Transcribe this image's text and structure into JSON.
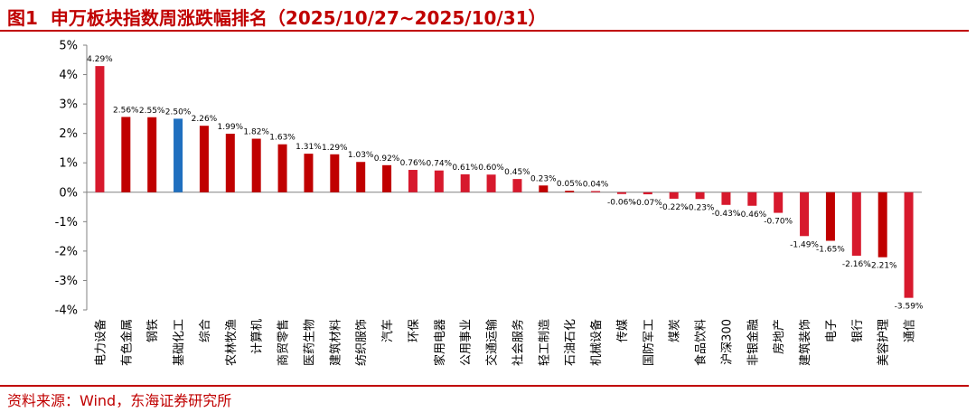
{
  "header": {
    "fig_label": "图1",
    "title": "申万板块指数周涨跌幅排名（2025/10/27~2025/10/31）"
  },
  "footer": {
    "source": "资料来源：Wind，东海证券研究所"
  },
  "colors": {
    "bar_default": "#d7192d",
    "bar_alt": "#c00000",
    "bar_highlight": "#1f6fbf",
    "axis": "#808080",
    "text": "#000000",
    "accent": "#c00000"
  },
  "chart_data": {
    "type": "bar",
    "title": "申万板块指数周涨跌幅排名（2025/10/27~2025/10/31）",
    "categories": [
      "电力设备",
      "有色金属",
      "钢铁",
      "基础化工",
      "综合",
      "农林牧渔",
      "计算机",
      "商贸零售",
      "医药生物",
      "建筑材料",
      "纺织服饰",
      "汽车",
      "环保",
      "家用电器",
      "公用事业",
      "交通运输",
      "社会服务",
      "轻工制造",
      "石油石化",
      "机械设备",
      "传媒",
      "国防军工",
      "煤炭",
      "食品饮料",
      "沪深300",
      "非银金融",
      "房地产",
      "建筑装饰",
      "电子",
      "银行",
      "美容护理",
      "通信"
    ],
    "values": [
      4.29,
      2.56,
      2.55,
      2.5,
      2.26,
      1.99,
      1.82,
      1.63,
      1.31,
      1.29,
      1.03,
      0.92,
      0.76,
      0.74,
      0.61,
      0.6,
      0.45,
      0.23,
      0.05,
      0.04,
      -0.06,
      -0.07,
      -0.22,
      -0.23,
      -0.43,
      -0.46,
      -0.7,
      -1.49,
      -1.65,
      -2.16,
      -2.21,
      -3.59
    ],
    "data_labels": [
      "4.29%",
      "2.56%",
      "2.55%",
      "2.50%",
      "2.26%",
      "1.99%",
      "1.82%",
      "1.63%",
      "1.31%",
      "1.29%",
      "1.03%",
      "0.92%",
      "0.76%",
      "0.74%",
      "0.61%",
      "0.60%",
      "0.45%",
      "0.23%",
      "0.05%",
      "0.04%",
      "-0.06%",
      "-0.07%",
      "-0.22%",
      "-0.23%",
      "-0.43%",
      "-0.46%",
      "-0.70%",
      "-1.49%",
      "-1.65%",
      "-2.16%",
      "-2.21%",
      "-3.59%"
    ],
    "bar_colors": [
      "#d7192d",
      "#c00000",
      "#c00000",
      "#1f6fbf",
      "#c00000",
      "#c00000",
      "#c00000",
      "#c00000",
      "#c00000",
      "#c00000",
      "#c00000",
      "#c00000",
      "#d7192d",
      "#d7192d",
      "#d7192d",
      "#d7192d",
      "#d7192d",
      "#c00000",
      "#c00000",
      "#d7192d",
      "#d7192d",
      "#d7192d",
      "#d7192d",
      "#d7192d",
      "#d7192d",
      "#d7192d",
      "#d7192d",
      "#d7192d",
      "#c00000",
      "#d7192d",
      "#c00000",
      "#d7192d"
    ],
    "y_ticks": [
      "5%",
      "4%",
      "3%",
      "2%",
      "1%",
      "0%",
      "-1%",
      "-2%",
      "-3%",
      "-4%"
    ],
    "ylim": [
      -4,
      5
    ],
    "xlabel": "",
    "ylabel": "",
    "grid": false,
    "legend": "none"
  }
}
